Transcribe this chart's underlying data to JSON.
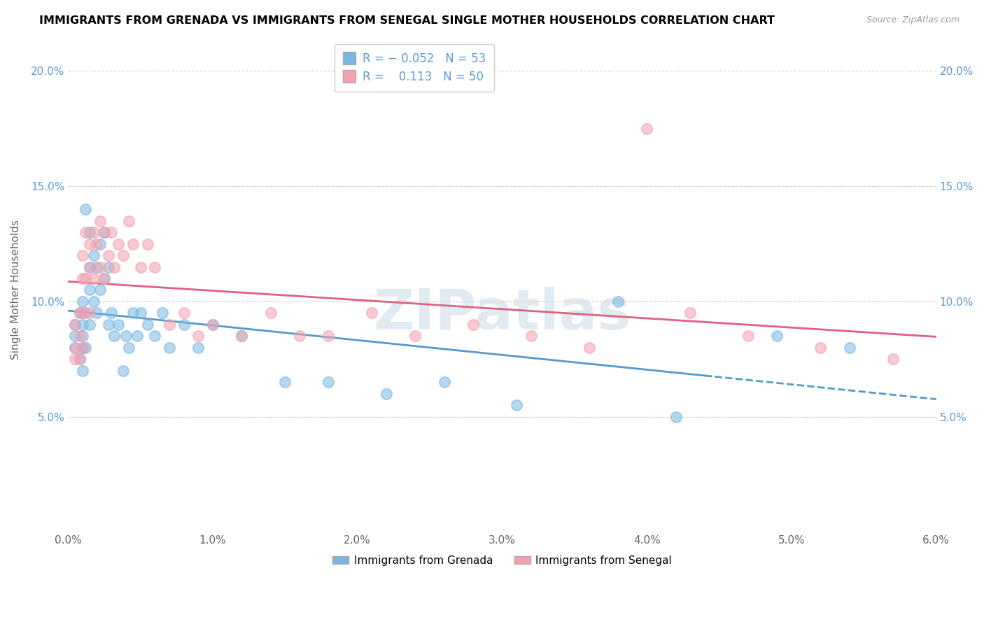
{
  "title": "IMMIGRANTS FROM GRENADA VS IMMIGRANTS FROM SENEGAL SINGLE MOTHER HOUSEHOLDS CORRELATION CHART",
  "source": "Source: ZipAtlas.com",
  "ylabel": "Single Mother Households",
  "xlim": [
    0.0,
    0.06
  ],
  "ylim": [
    0.0,
    0.21
  ],
  "xticks": [
    0.0,
    0.01,
    0.02,
    0.03,
    0.04,
    0.05,
    0.06
  ],
  "xtick_labels": [
    "0.0%",
    "1.0%",
    "2.0%",
    "3.0%",
    "4.0%",
    "5.0%",
    "6.0%"
  ],
  "yticks": [
    0.0,
    0.05,
    0.1,
    0.15,
    0.2
  ],
  "ytick_labels": [
    "",
    "5.0%",
    "10.0%",
    "15.0%",
    "20.0%"
  ],
  "color_grenada": "#7ab8e0",
  "color_senegal": "#f4a0b0",
  "trendline_grenada_color": "#5599cc",
  "trendline_senegal_color": "#e06080",
  "R_grenada": -0.052,
  "N_grenada": 53,
  "R_senegal": 0.113,
  "N_senegal": 50,
  "legend_label_grenada": "Immigrants from Grenada",
  "legend_label_senegal": "Immigrants from Senegal",
  "watermark": "ZIPatlas",
  "grenada_x": [
    0.0005,
    0.0005,
    0.0005,
    0.0008,
    0.0008,
    0.001,
    0.001,
    0.001,
    0.001,
    0.001,
    0.0012,
    0.0012,
    0.0012,
    0.0015,
    0.0015,
    0.0015,
    0.0015,
    0.0018,
    0.0018,
    0.002,
    0.002,
    0.0022,
    0.0022,
    0.0025,
    0.0025,
    0.0028,
    0.0028,
    0.003,
    0.0032,
    0.0035,
    0.0038,
    0.004,
    0.0042,
    0.0045,
    0.0048,
    0.005,
    0.0055,
    0.006,
    0.0065,
    0.007,
    0.008,
    0.009,
    0.01,
    0.012,
    0.015,
    0.018,
    0.022,
    0.026,
    0.031,
    0.038,
    0.042,
    0.049,
    0.054
  ],
  "grenada_y": [
    0.09,
    0.085,
    0.08,
    0.095,
    0.075,
    0.1,
    0.09,
    0.085,
    0.08,
    0.07,
    0.14,
    0.095,
    0.08,
    0.13,
    0.115,
    0.105,
    0.09,
    0.12,
    0.1,
    0.115,
    0.095,
    0.125,
    0.105,
    0.13,
    0.11,
    0.115,
    0.09,
    0.095,
    0.085,
    0.09,
    0.07,
    0.085,
    0.08,
    0.095,
    0.085,
    0.095,
    0.09,
    0.085,
    0.095,
    0.08,
    0.09,
    0.08,
    0.09,
    0.085,
    0.065,
    0.065,
    0.06,
    0.065,
    0.055,
    0.1,
    0.05,
    0.085,
    0.08
  ],
  "senegal_x": [
    0.0005,
    0.0005,
    0.0005,
    0.0008,
    0.0008,
    0.0008,
    0.001,
    0.001,
    0.001,
    0.001,
    0.0012,
    0.0012,
    0.0015,
    0.0015,
    0.0015,
    0.0018,
    0.0018,
    0.002,
    0.0022,
    0.0022,
    0.0025,
    0.0025,
    0.0028,
    0.003,
    0.0032,
    0.0035,
    0.0038,
    0.0042,
    0.0045,
    0.005,
    0.0055,
    0.006,
    0.007,
    0.008,
    0.009,
    0.01,
    0.012,
    0.014,
    0.016,
    0.018,
    0.021,
    0.024,
    0.028,
    0.032,
    0.036,
    0.04,
    0.043,
    0.047,
    0.052,
    0.057
  ],
  "senegal_y": [
    0.09,
    0.08,
    0.075,
    0.095,
    0.085,
    0.075,
    0.12,
    0.11,
    0.095,
    0.08,
    0.13,
    0.11,
    0.125,
    0.115,
    0.095,
    0.13,
    0.11,
    0.125,
    0.135,
    0.115,
    0.13,
    0.11,
    0.12,
    0.13,
    0.115,
    0.125,
    0.12,
    0.135,
    0.125,
    0.115,
    0.125,
    0.115,
    0.09,
    0.095,
    0.085,
    0.09,
    0.085,
    0.095,
    0.085,
    0.085,
    0.095,
    0.085,
    0.09,
    0.085,
    0.08,
    0.175,
    0.095,
    0.085,
    0.08,
    0.075
  ]
}
